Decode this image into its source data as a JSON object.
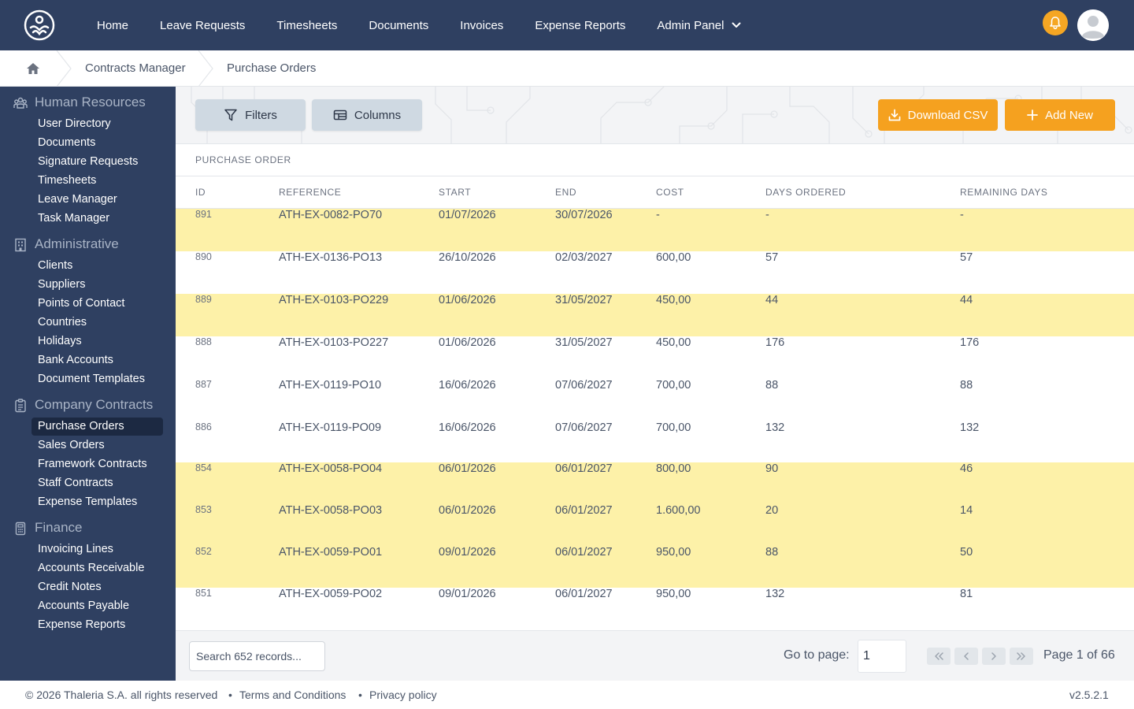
{
  "nav": {
    "items": [
      {
        "label": "Home"
      },
      {
        "label": "Leave Requests"
      },
      {
        "label": "Timesheets"
      },
      {
        "label": "Documents"
      },
      {
        "label": "Invoices"
      },
      {
        "label": "Expense Reports"
      },
      {
        "label": "Admin Panel"
      }
    ],
    "notification_icon": "bell-icon",
    "avatar_icon": "user-avatar-icon",
    "colors": {
      "bar": "#2f4061",
      "bell": "#f5a623"
    }
  },
  "breadcrumb": {
    "home_icon": "home-icon",
    "items": [
      {
        "label": "Contracts Manager"
      },
      {
        "label": "Purchase Orders"
      }
    ]
  },
  "sidebar": {
    "sections": [
      {
        "title": "Human Resources",
        "icon": "people-icon",
        "items": [
          {
            "label": "User Directory"
          },
          {
            "label": "Documents"
          },
          {
            "label": "Signature Requests"
          },
          {
            "label": "Timesheets"
          },
          {
            "label": "Leave Manager"
          },
          {
            "label": "Task Manager"
          }
        ]
      },
      {
        "title": "Administrative",
        "icon": "building-icon",
        "items": [
          {
            "label": "Clients"
          },
          {
            "label": "Suppliers"
          },
          {
            "label": "Points of Contact"
          },
          {
            "label": "Countries"
          },
          {
            "label": "Holidays"
          },
          {
            "label": "Bank Accounts"
          },
          {
            "label": "Document Templates"
          }
        ]
      },
      {
        "title": "Company Contracts",
        "icon": "clipboard-icon",
        "items": [
          {
            "label": "Purchase Orders"
          },
          {
            "label": "Sales Orders"
          },
          {
            "label": "Framework Contracts"
          },
          {
            "label": "Staff Contracts"
          },
          {
            "label": "Expense Templates"
          }
        ]
      },
      {
        "title": "Finance",
        "icon": "calculator-icon",
        "items": [
          {
            "label": "Invoicing Lines"
          },
          {
            "label": "Accounts Receivable"
          },
          {
            "label": "Credit Notes"
          },
          {
            "label": "Accounts Payable"
          },
          {
            "label": "Expense Reports"
          }
        ]
      }
    ],
    "active_item": "Purchase Orders"
  },
  "toolbar": {
    "filters_label": "Filters",
    "columns_label": "Columns",
    "download_label": "Download CSV",
    "add_label": "Add New",
    "accent": "#f5a11f"
  },
  "table": {
    "caption": "PURCHASE ORDER",
    "columns": [
      "ID",
      "REFERENCE",
      "START",
      "END",
      "COST",
      "DAYS ORDERED",
      "REMAINING DAYS"
    ],
    "highlight_color": "#fdf1a8",
    "rows": [
      {
        "id": "891",
        "reference": "ATH-EX-0082-PO70",
        "start": "01/07/2026",
        "end": "30/07/2026",
        "cost": "-",
        "days_ordered": "-",
        "remaining_days": "-",
        "highlighted": true
      },
      {
        "id": "890",
        "reference": "ATH-EX-0136-PO13",
        "start": "26/10/2026",
        "end": "02/03/2027",
        "cost": "600,00",
        "days_ordered": "57",
        "remaining_days": "57",
        "highlighted": false
      },
      {
        "id": "889",
        "reference": "ATH-EX-0103-PO229",
        "start": "01/06/2026",
        "end": "31/05/2027",
        "cost": "450,00",
        "days_ordered": "44",
        "remaining_days": "44",
        "highlighted": true
      },
      {
        "id": "888",
        "reference": "ATH-EX-0103-PO227",
        "start": "01/06/2026",
        "end": "31/05/2027",
        "cost": "450,00",
        "days_ordered": "176",
        "remaining_days": "176",
        "highlighted": false
      },
      {
        "id": "887",
        "reference": "ATH-EX-0119-PO10",
        "start": "16/06/2026",
        "end": "07/06/2027",
        "cost": "700,00",
        "days_ordered": "88",
        "remaining_days": "88",
        "highlighted": false
      },
      {
        "id": "886",
        "reference": "ATH-EX-0119-PO09",
        "start": "16/06/2026",
        "end": "07/06/2027",
        "cost": "700,00",
        "days_ordered": "132",
        "remaining_days": "132",
        "highlighted": false
      },
      {
        "id": "854",
        "reference": "ATH-EX-0058-PO04",
        "start": "06/01/2026",
        "end": "06/01/2027",
        "cost": "800,00",
        "days_ordered": "90",
        "remaining_days": "46",
        "highlighted": true
      },
      {
        "id": "853",
        "reference": "ATH-EX-0058-PO03",
        "start": "06/01/2026",
        "end": "06/01/2027",
        "cost": "1.600,00",
        "days_ordered": "20",
        "remaining_days": "14",
        "highlighted": true
      },
      {
        "id": "852",
        "reference": "ATH-EX-0059-PO01",
        "start": "09/01/2026",
        "end": "06/01/2027",
        "cost": "950,00",
        "days_ordered": "88",
        "remaining_days": "50",
        "highlighted": true
      },
      {
        "id": "851",
        "reference": "ATH-EX-0059-PO02",
        "start": "09/01/2026",
        "end": "06/01/2027",
        "cost": "950,00",
        "days_ordered": "132",
        "remaining_days": "81",
        "highlighted": false
      }
    ]
  },
  "pagination": {
    "search_placeholder": "Search 652 records...",
    "goto_label": "Go to page:",
    "goto_value": "1",
    "page_info": "Page 1 of 66",
    "buttons": [
      "first-page-icon",
      "prev-page-icon",
      "next-page-icon",
      "last-page-icon"
    ]
  },
  "footer": {
    "copyright": "© 2026 Thaleria S.A. all rights reserved",
    "separator": "•",
    "terms": "Terms and Conditions",
    "privacy": "Privacy policy",
    "version": "v2.5.2.1"
  }
}
